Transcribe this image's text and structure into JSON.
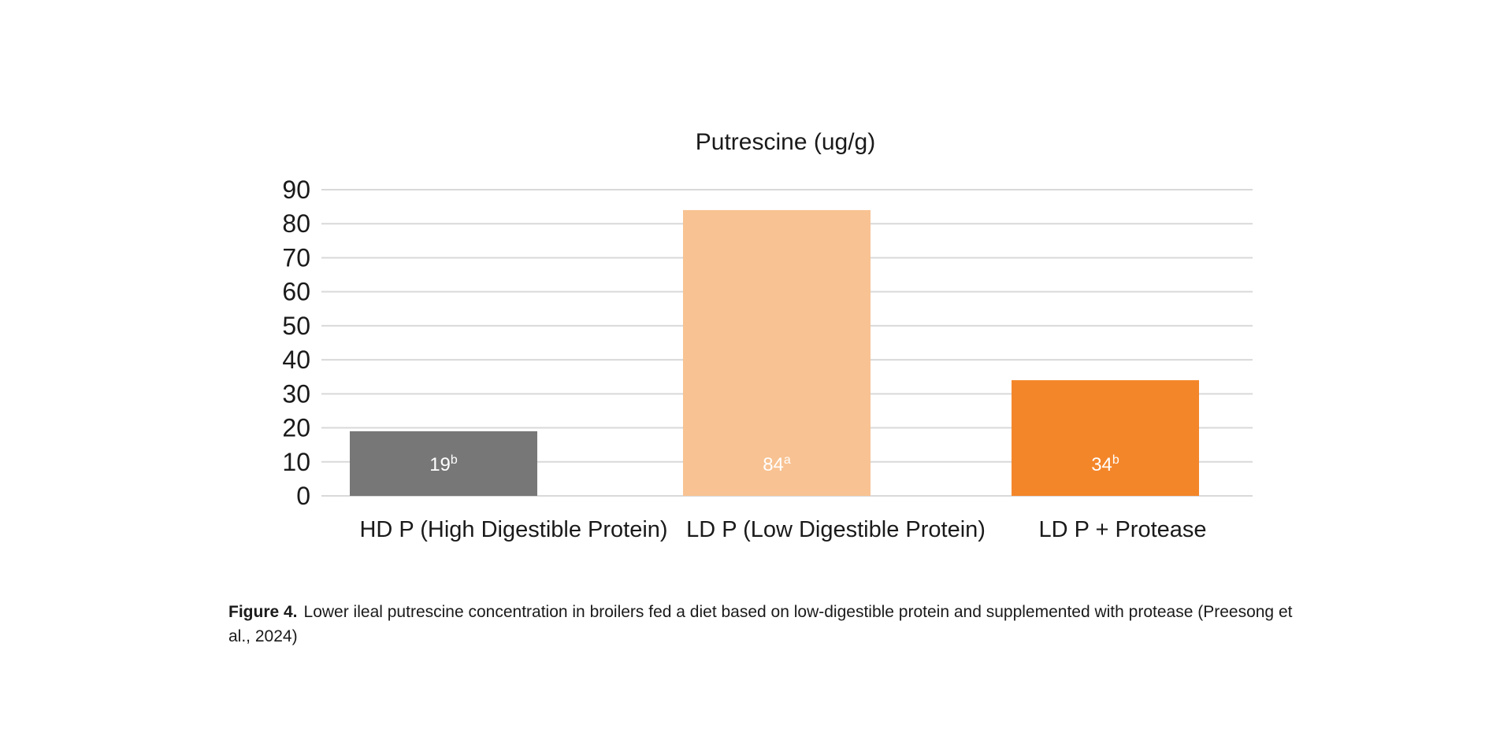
{
  "chart_data": {
    "type": "bar",
    "title": "Putrescine (ug/g)",
    "xlabel": "",
    "ylabel": "",
    "categories": [
      "HD P (High Digestible Protein)",
      "LD P (Low Digestible Protein)",
      "LD P + Protease"
    ],
    "values": [
      19,
      84,
      34
    ],
    "data_labels": [
      {
        "value": "19",
        "letter": "b"
      },
      {
        "value": "84",
        "letter": "a"
      },
      {
        "value": "34",
        "letter": "b"
      }
    ],
    "colors": [
      "#777777",
      "#f8c292",
      "#f4862a"
    ],
    "ylim": [
      0,
      90
    ],
    "yticks": [
      0,
      10,
      20,
      30,
      40,
      50,
      60,
      70,
      80,
      90
    ],
    "grid": true,
    "grid_color": "#d9d9d9",
    "legend": "none"
  },
  "caption": {
    "label": "Figure 4.",
    "text": "Lower ileal putrescine concentration in broilers fed a diet based on low-digestible protein and supplemented with protease (Preesong et al., 2024)"
  }
}
